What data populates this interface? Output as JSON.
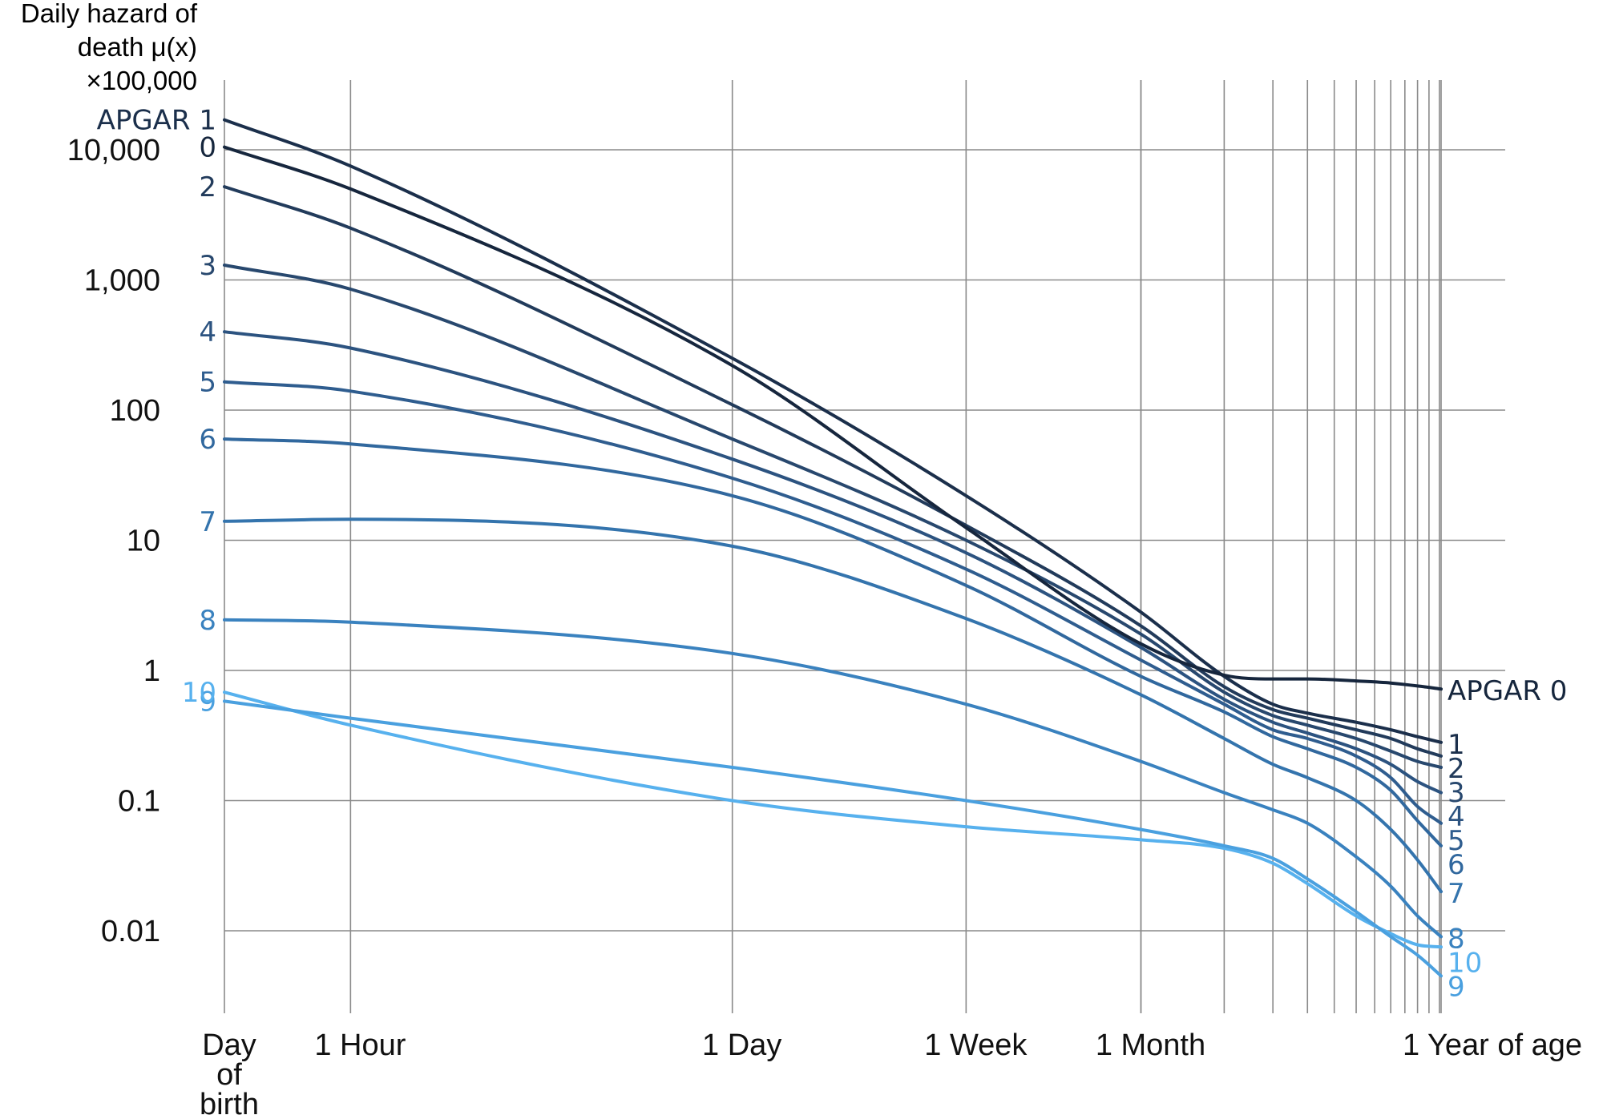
{
  "chart_data": {
    "type": "line",
    "ylabel": [
      "Daily hazard of",
      "death μ(x)",
      "×100,000"
    ],
    "y_scale": "log",
    "ylim": [
      0.003,
      30000
    ],
    "yticks": [
      {
        "value": 10000,
        "label": "10,000"
      },
      {
        "value": 1000,
        "label": "1,000"
      },
      {
        "value": 100,
        "label": "100"
      },
      {
        "value": 10,
        "label": "10"
      },
      {
        "value": 1,
        "label": "1"
      },
      {
        "value": 0.1,
        "label": "0.1"
      },
      {
        "value": 0.01,
        "label": "0.01"
      }
    ],
    "x_unit": "hours of age",
    "x_scale": "log",
    "x_ticks": [
      {
        "label": "Day of birth",
        "hours": 0.35
      },
      {
        "label": "1 Hour",
        "hours": 1
      },
      {
        "label": "1 Day",
        "hours": 24
      },
      {
        "label": "1 Week",
        "hours": 168
      },
      {
        "label": "1 Month",
        "hours": 720
      },
      {
        "label": "1 Year of age",
        "hours": 8760
      }
    ],
    "x_month_gridlines_hours": [
      720,
      1440,
      2160,
      2880,
      3600,
      4320,
      5040,
      5760,
      6480,
      7200,
      7920,
      8640
    ],
    "grid": true,
    "series": [
      {
        "name": "APGAR 0",
        "color": "#16263d",
        "x": [
          0.35,
          1,
          24,
          168,
          720,
          1440,
          2160,
          2880,
          4320,
          5760,
          7200,
          8760
        ],
        "y": [
          10500,
          5000,
          220,
          12.5,
          1.6,
          0.92,
          0.86,
          0.86,
          0.83,
          0.8,
          0.76,
          0.72
        ]
      },
      {
        "name": "1",
        "color": "#1b2f4b",
        "x": [
          0.35,
          1,
          24,
          168,
          720,
          1440,
          2160,
          2880,
          4320,
          5760,
          7200,
          8760
        ],
        "y": [
          17000,
          7500,
          250,
          22,
          2.8,
          0.9,
          0.55,
          0.47,
          0.4,
          0.35,
          0.31,
          0.28
        ]
      },
      {
        "name": "2",
        "color": "#223b5b",
        "x": [
          0.35,
          1,
          24,
          168,
          720,
          1440,
          2160,
          2880,
          4320,
          5760,
          7200,
          8760
        ],
        "y": [
          5200,
          2500,
          110,
          13,
          2.2,
          0.75,
          0.5,
          0.43,
          0.35,
          0.3,
          0.25,
          0.22
        ]
      },
      {
        "name": "3",
        "color": "#28486e",
        "x": [
          0.35,
          1,
          24,
          168,
          720,
          1440,
          2160,
          2880,
          4320,
          5760,
          7200,
          8760
        ],
        "y": [
          1300,
          850,
          60,
          10,
          1.9,
          0.68,
          0.45,
          0.38,
          0.3,
          0.24,
          0.2,
          0.18
        ]
      },
      {
        "name": "4",
        "color": "#2c5380",
        "x": [
          0.35,
          1,
          24,
          168,
          720,
          1440,
          2160,
          2880,
          4320,
          5760,
          7200,
          8760
        ],
        "y": [
          400,
          300,
          42,
          8,
          1.5,
          0.6,
          0.4,
          0.33,
          0.25,
          0.19,
          0.14,
          0.115
        ]
      },
      {
        "name": "5",
        "color": "#2f5d8f",
        "x": [
          0.35,
          1,
          24,
          168,
          720,
          1440,
          2160,
          2880,
          4320,
          5760,
          7200,
          8760
        ],
        "y": [
          165,
          140,
          30,
          6,
          1.2,
          0.55,
          0.35,
          0.3,
          0.22,
          0.15,
          0.09,
          0.067
        ]
      },
      {
        "name": "6",
        "color": "#31689e",
        "x": [
          0.35,
          1,
          24,
          168,
          720,
          1440,
          2160,
          2880,
          4320,
          5760,
          7200,
          8760
        ],
        "y": [
          60,
          55,
          22,
          4.5,
          0.9,
          0.48,
          0.31,
          0.25,
          0.18,
          0.12,
          0.07,
          0.045
        ]
      },
      {
        "name": "7",
        "color": "#3474ad",
        "x": [
          0.35,
          1,
          24,
          168,
          720,
          1440,
          2160,
          2880,
          4320,
          5760,
          7200,
          8760
        ],
        "y": [
          14,
          14.5,
          9,
          2.5,
          0.65,
          0.3,
          0.19,
          0.15,
          0.1,
          0.06,
          0.035,
          0.02
        ]
      },
      {
        "name": "8",
        "color": "#3a82bf",
        "x": [
          0.35,
          1,
          24,
          168,
          720,
          1440,
          2160,
          2880,
          4320,
          5760,
          7200,
          8760
        ],
        "y": [
          2.45,
          2.35,
          1.35,
          0.55,
          0.2,
          0.115,
          0.085,
          0.067,
          0.037,
          0.022,
          0.013,
          0.009
        ]
      },
      {
        "name": "9",
        "color": "#4aa0df",
        "x": [
          0.35,
          1,
          24,
          168,
          720,
          1440,
          2160,
          2880,
          4320,
          5760,
          7200,
          8760
        ],
        "y": [
          0.58,
          0.43,
          0.18,
          0.1,
          0.06,
          0.045,
          0.036,
          0.025,
          0.014,
          0.009,
          0.0065,
          0.0045
        ]
      },
      {
        "name": "10",
        "color": "#57b1ee",
        "x": [
          0.35,
          1,
          24,
          168,
          720,
          1440,
          2160,
          2880,
          4320,
          5760,
          7200,
          8760
        ],
        "y": [
          0.68,
          0.38,
          0.1,
          0.063,
          0.05,
          0.043,
          0.033,
          0.023,
          0.013,
          0.0095,
          0.0078,
          0.0075
        ]
      }
    ],
    "start_labels": [
      {
        "series": "APGAR 0",
        "text": "0"
      },
      {
        "series": "1",
        "text": "APGAR 1"
      },
      {
        "series": "2",
        "text": "2"
      },
      {
        "series": "3",
        "text": "3"
      },
      {
        "series": "4",
        "text": "4"
      },
      {
        "series": "5",
        "text": "5"
      },
      {
        "series": "6",
        "text": "6"
      },
      {
        "series": "7",
        "text": "7"
      },
      {
        "series": "8",
        "text": "8"
      },
      {
        "series": "9",
        "text": "9"
      },
      {
        "series": "10",
        "text": "10"
      }
    ],
    "end_labels": [
      {
        "series": "APGAR 0",
        "text": "APGAR 0"
      },
      {
        "series": "1",
        "text": "1"
      },
      {
        "series": "2",
        "text": "2"
      },
      {
        "series": "3",
        "text": "3"
      },
      {
        "series": "4",
        "text": "4"
      },
      {
        "series": "5",
        "text": "5"
      },
      {
        "series": "6",
        "text": "6"
      },
      {
        "series": "7",
        "text": "7"
      },
      {
        "series": "8",
        "text": "8"
      },
      {
        "series": "10",
        "text": "10"
      },
      {
        "series": "9",
        "text": "9"
      }
    ]
  }
}
